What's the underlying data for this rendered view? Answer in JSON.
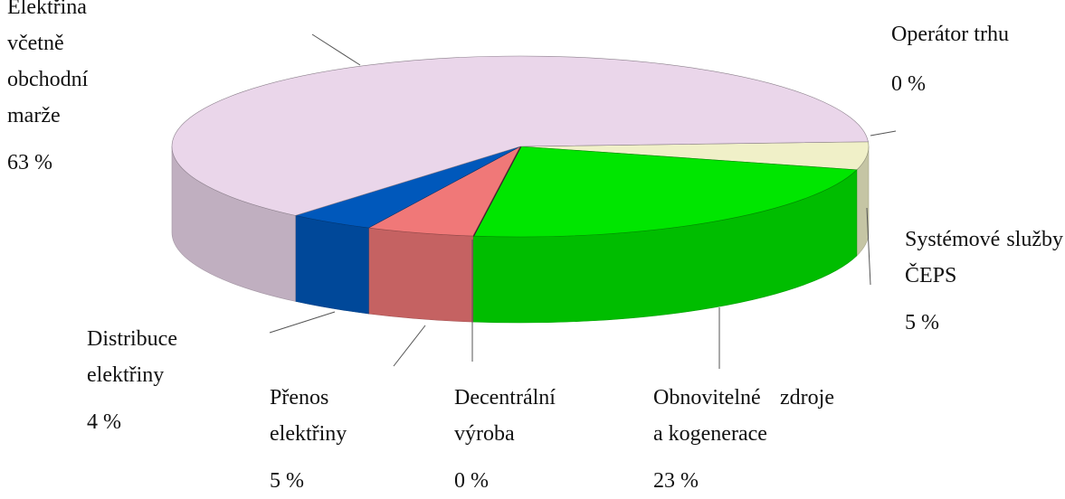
{
  "chart_data": {
    "type": "pie",
    "categories": [
      "Operátor trhu",
      "Systémové služby ČEPS",
      "Obnovitelné zdroje a kogenerace",
      "Decentrální výroba",
      "Přenos elektřiny",
      "Distribuce elektřiny",
      "Elektřina včetně obchodní marže"
    ],
    "values": [
      0,
      5,
      23,
      0,
      5,
      4,
      63
    ],
    "value_labels": [
      "0 %",
      "5 %",
      "23 %",
      "0 %",
      "5 %",
      "4 %",
      "63 %"
    ],
    "colors": [
      "#8a8a6a",
      "#f0f0c8",
      "#00e600",
      "#3a1030",
      "#f07878",
      "#0058bb",
      "#ead6ea"
    ]
  }
}
